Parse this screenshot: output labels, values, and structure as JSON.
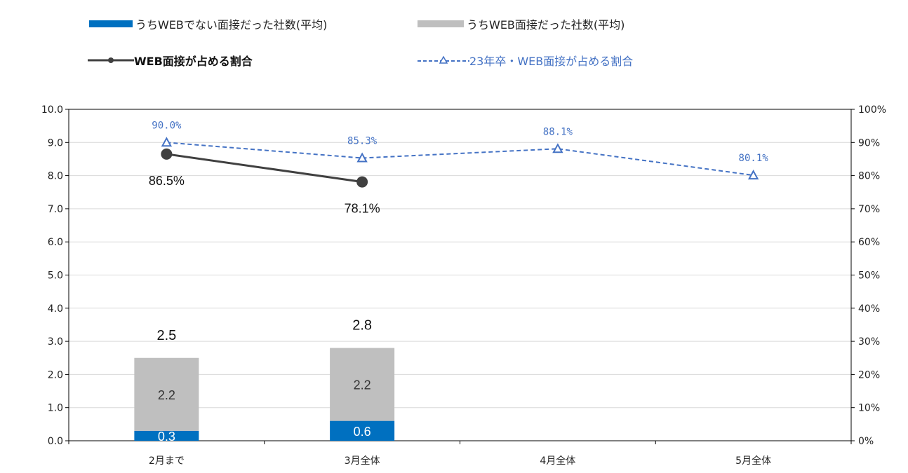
{
  "legend": {
    "non_web": "うちWEBでない面接だった社数(平均)",
    "web": "うちWEB面接だった社数(平均)",
    "ratio": "WEB面接が占める割合",
    "ratio23": "23年卒・WEB面接が占める割合"
  },
  "colors": {
    "non_web": "#0070c0",
    "web": "#bfbfbf",
    "ratio": "#404040",
    "ratio23": "#4472c4"
  },
  "chart_data": {
    "type": "bar",
    "categories": [
      "2月まで",
      "3月全体",
      "4月全体",
      "5月全体"
    ],
    "y_left": {
      "ylim": [
        0,
        10
      ],
      "ticks": [
        "0.0",
        "1.0",
        "2.0",
        "3.0",
        "4.0",
        "5.0",
        "6.0",
        "7.0",
        "8.0",
        "9.0",
        "10.0"
      ]
    },
    "y_right": {
      "ylim": [
        0,
        100
      ],
      "ticks": [
        "0%",
        "10%",
        "20%",
        "30%",
        "40%",
        "50%",
        "60%",
        "70%",
        "80%",
        "90%",
        "100%"
      ]
    },
    "grid": true,
    "legend_position": "top",
    "bar_series": [
      {
        "name": "うちWEBでない面接だった社数(平均)",
        "values": [
          0.3,
          0.6,
          null,
          null
        ],
        "labels": [
          "0.3",
          "0.6",
          "",
          ""
        ]
      },
      {
        "name": "うちWEB面接だった社数(平均)",
        "values": [
          2.2,
          2.2,
          null,
          null
        ],
        "labels": [
          "2.2",
          "2.2",
          "",
          ""
        ]
      }
    ],
    "bar_totals": [
      2.5,
      2.8,
      null,
      null
    ],
    "bar_total_labels": [
      "2.5",
      "2.8",
      "",
      ""
    ],
    "line_series": [
      {
        "name": "WEB面接が占める割合",
        "axis": "right",
        "values": [
          86.5,
          78.1,
          null,
          null
        ],
        "labels": [
          "86.5%",
          "78.1%",
          "",
          ""
        ]
      },
      {
        "name": "23年卒・WEB面接が占める割合",
        "axis": "right",
        "values": [
          90.0,
          85.3,
          88.1,
          80.1
        ],
        "labels": [
          "90.0%",
          "85.3%",
          "88.1%",
          "80.1%"
        ]
      }
    ]
  }
}
